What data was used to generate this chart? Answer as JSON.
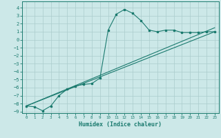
{
  "title": "",
  "xlabel": "Humidex (Indice chaleur)",
  "ylabel": "",
  "bg_color": "#cce8e8",
  "line_color": "#1a7a6e",
  "grid_color": "#aacccc",
  "xlim": [
    -0.5,
    23.5
  ],
  "ylim": [
    -9.2,
    4.8
  ],
  "xticks": [
    0,
    1,
    2,
    3,
    4,
    5,
    6,
    7,
    8,
    9,
    10,
    11,
    12,
    13,
    14,
    15,
    16,
    17,
    18,
    19,
    20,
    21,
    22,
    23
  ],
  "yticks": [
    4,
    3,
    2,
    1,
    0,
    -1,
    -2,
    -3,
    -4,
    -5,
    -6,
    -7,
    -8,
    -9
  ],
  "line1_x": [
    0,
    1,
    2,
    3,
    4,
    5,
    6,
    7,
    8,
    9,
    10,
    11,
    12,
    13,
    14,
    15,
    16,
    17,
    18,
    19,
    20,
    21,
    22,
    23
  ],
  "line1_y": [
    -8.3,
    -8.4,
    -8.9,
    -8.3,
    -7.0,
    -6.2,
    -5.8,
    -5.6,
    -5.5,
    -4.8,
    1.2,
    3.2,
    3.8,
    3.3,
    2.4,
    1.2,
    1.0,
    1.2,
    1.2,
    0.9,
    0.9,
    0.9,
    1.0,
    1.0
  ],
  "line2_x": [
    0,
    23
  ],
  "line2_y": [
    -8.3,
    1.0
  ],
  "line3_x": [
    0,
    23
  ],
  "line3_y": [
    -8.3,
    1.5
  ]
}
